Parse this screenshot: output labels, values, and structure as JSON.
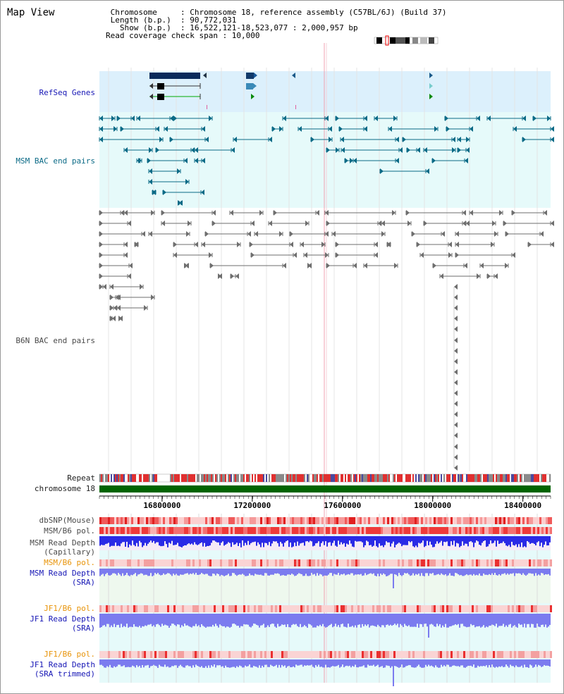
{
  "page": {
    "title": "Map View"
  },
  "chromosome_info": {
    "lines": [
      " Chromosome     : Chromosome 18, reference assembly (C57BL/6J) (Build 37)",
      " Length (b.p.)  : 90,772,031",
      "   Show (b.p.)  : 16,522,121-18,523,077 : 2,000,957 bp",
      "Read coverage check span : 10,000"
    ]
  },
  "tracks": {
    "refseq_genes": "RefSeq Genes",
    "msm_bac": "MSM BAC end pairs",
    "b6n_bac": "B6N BAC end pairs",
    "repeat": "Repeat",
    "chromosome": "chromosome 18",
    "dbsnp": "dbSNP(Mouse)",
    "msm_b6_pol": "MSM/B6 pol.",
    "msm_depth_cap_1": "MSM Read Depth",
    "msm_depth_cap_2": "(Capillary)",
    "msm_b6_pol_2": "MSM/B6 pol.",
    "msm_depth_sra_1": "MSM Read Depth",
    "msm_depth_sra_2": "(SRA)",
    "jf1_b6_pol": "JF1/B6 pol.",
    "jf1_depth_sra_1": "JF1 Read Depth",
    "jf1_depth_sra_2": "(SRA)",
    "jf1_b6_pol_2": "JF1/B6 pol.",
    "jf1_depth_trim_1": "JF1 Read Depth",
    "jf1_depth_trim_2": "(SRA trimmed)"
  },
  "axis": {
    "ticks": [
      {
        "value": 16800000,
        "label": "16800000"
      },
      {
        "value": 17200000,
        "label": "17200000"
      },
      {
        "value": 17600000,
        "label": "17600000"
      },
      {
        "value": 18000000,
        "label": "18000000"
      },
      {
        "value": 18400000,
        "label": "18400000"
      }
    ],
    "range": [
      16522121,
      18523077
    ]
  },
  "colors": {
    "refseq_band": "#dcf0fc",
    "bac_band": "#e6fafa",
    "gene_dark": "#0a2a5a",
    "bac_teal": "#0b6a86",
    "bac_gray": "#6e6e6e",
    "chromosome_green": "#006400",
    "depth_blue": "#2a2ae6",
    "depth_lavender": "#7b7bef",
    "snp_red": "#e83030",
    "highlight_line": "#f0a0b0"
  }
}
